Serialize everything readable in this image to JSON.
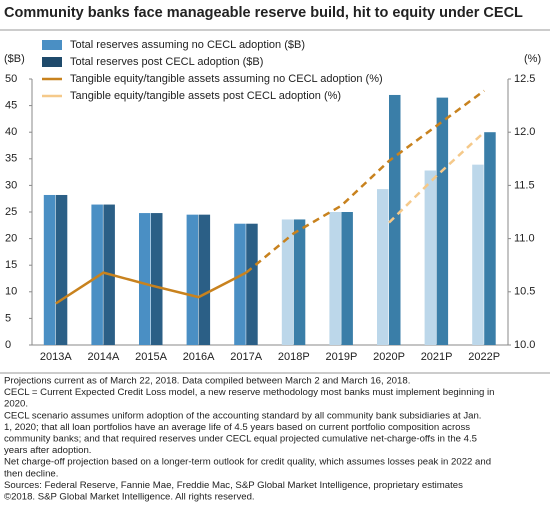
{
  "chart_data": {
    "type": "bar-line",
    "title": "Community banks face manageable reserve build, hit to equity under CECL",
    "y_label": "($B)",
    "y2_label": "(%)",
    "categories": [
      "2013A",
      "2014A",
      "2015A",
      "2016A",
      "2017A",
      "2018P",
      "2019P",
      "2020P",
      "2021P",
      "2022P"
    ],
    "series": [
      {
        "name": "Total reserves assuming no CECL adoption ($B)",
        "type": "bar",
        "color": "#4a8fc4",
        "colors": [
          "#4a8fc4",
          "#4a8fc4",
          "#4a8fc4",
          "#4a8fc4",
          "#4a8fc4",
          "#bcd7ea",
          "#bcd7ea",
          "#bcd7ea",
          "#bcd7ea",
          "#bcd7ea"
        ],
        "values": [
          28.2,
          26.4,
          24.8,
          24.5,
          22.8,
          23.6,
          25.0,
          29.3,
          32.8,
          33.9
        ]
      },
      {
        "name": "Total reserves post CECL adoption ($B)",
        "type": "bar",
        "color": "#1f4a6b",
        "colors": [
          "#2b5f86",
          "#2b5f86",
          "#2b5f86",
          "#2b5f86",
          "#2b5f86",
          "#3a7ea8",
          "#3a7ea8",
          "#3a7ea8",
          "#3a7ea8",
          "#3a7ea8"
        ],
        "values": [
          28.2,
          26.4,
          24.8,
          24.5,
          22.8,
          23.6,
          25.0,
          47.0,
          46.5,
          40.0
        ]
      },
      {
        "name": "Tangible equity/tangible assets assuming no CECL adoption (%)",
        "type": "line",
        "axis": "y2",
        "color": "#c8821e",
        "dashed_from": 4,
        "values": [
          10.39,
          10.68,
          10.56,
          10.45,
          10.68,
          11.05,
          11.31,
          11.73,
          12.06,
          12.39
        ]
      },
      {
        "name": "Tangible equity/tangible assets post CECL adoption (%)",
        "type": "line",
        "axis": "y2",
        "color": "#f5c98a",
        "dashed_from": 0,
        "values": [
          null,
          null,
          null,
          null,
          null,
          null,
          null,
          11.15,
          11.59,
          12.0
        ]
      }
    ],
    "ylim": [
      0,
      50
    ],
    "yticks": [
      0,
      5,
      10,
      15,
      20,
      25,
      30,
      35,
      40,
      45,
      50
    ],
    "y2lim": [
      10,
      12.5
    ],
    "y2ticks": [
      {
        "value": 10,
        "label": "10.0"
      },
      10.5,
      {
        "value": 11,
        "label": "11.0"
      },
      11.5,
      {
        "value": 12,
        "label": "12.0"
      },
      12.5
    ],
    "notes": [
      "Projections current as of March 22, 2018. Data compiled between March 2 and March 16, 2018.",
      "CECL = Current Expected Credit Loss model, a new reserve methodology most banks must implement beginning in",
      "2020.",
      "CECL scenario assumes uniform adoption of the accounting standard by all community bank subsidiaries at Jan.",
      "1, 2020; that all loan portfolios have an average life of 4.5 years based on current portfolio composition across",
      "community banks; and that required reserves under CECL equal projected cumulative net-charge-offs in the 4.5",
      "years after adoption.",
      "Net charge-off projection based on a longer-term outlook for credit quality, which assumes losses peak in 2022 and",
      "then decline.",
      "Sources: Federal Reserve, Fannie Mae, Freddie Mac, S&P Global Market Intelligence, proprietary estimates",
      "©2018. S&P Global Market Intelligence. All rights reserved."
    ]
  }
}
